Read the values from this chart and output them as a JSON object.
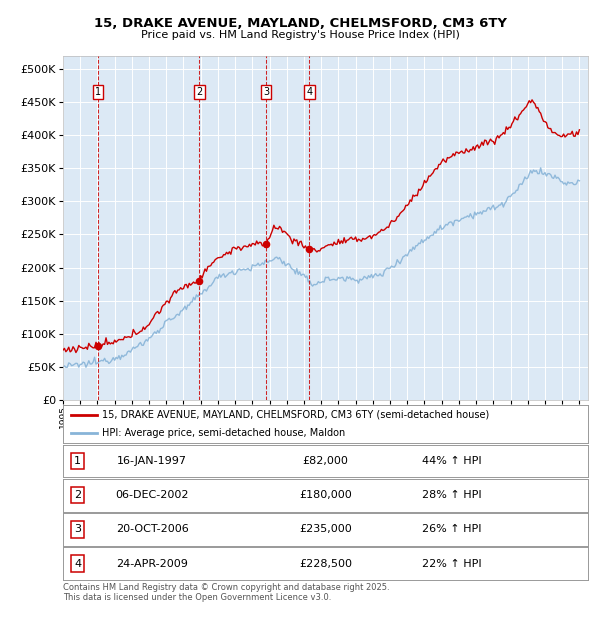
{
  "title": "15, DRAKE AVENUE, MAYLAND, CHELMSFORD, CM3 6TY",
  "subtitle": "Price paid vs. HM Land Registry's House Price Index (HPI)",
  "ylabel_ticks": [
    "£0",
    "£50K",
    "£100K",
    "£150K",
    "£200K",
    "£250K",
    "£300K",
    "£350K",
    "£400K",
    "£450K",
    "£500K"
  ],
  "ytick_values": [
    0,
    50000,
    100000,
    150000,
    200000,
    250000,
    300000,
    350000,
    400000,
    450000,
    500000
  ],
  "ylim": [
    0,
    520000
  ],
  "xlim_start": 1995.0,
  "xlim_end": 2025.5,
  "background_color": "#dce9f5",
  "grid_color": "#ffffff",
  "sale_color": "#cc0000",
  "hpi_color": "#88b4d8",
  "vline_color": "#cc0000",
  "transactions": [
    {
      "num": 1,
      "date_x": 1997.04,
      "price": 82000,
      "label": "1",
      "date_str": "16-JAN-1997",
      "pct": "44%"
    },
    {
      "num": 2,
      "date_x": 2002.92,
      "price": 180000,
      "label": "2",
      "date_str": "06-DEC-2002",
      "pct": "28%"
    },
    {
      "num": 3,
      "date_x": 2006.8,
      "price": 235000,
      "label": "3",
      "date_str": "20-OCT-2006",
      "pct": "26%"
    },
    {
      "num": 4,
      "date_x": 2009.31,
      "price": 228500,
      "label": "4",
      "date_str": "24-APR-2009",
      "pct": "22%"
    }
  ],
  "legend_sale_label": "15, DRAKE AVENUE, MAYLAND, CHELMSFORD, CM3 6TY (semi-detached house)",
  "legend_hpi_label": "HPI: Average price, semi-detached house, Maldon",
  "footnote": "Contains HM Land Registry data © Crown copyright and database right 2025.\nThis data is licensed under the Open Government Licence v3.0.",
  "table_rows": [
    [
      "1",
      "16-JAN-1997",
      "£82,000",
      "44% ↑ HPI"
    ],
    [
      "2",
      "06-DEC-2002",
      "£180,000",
      "28% ↑ HPI"
    ],
    [
      "3",
      "20-OCT-2006",
      "£235,000",
      "26% ↑ HPI"
    ],
    [
      "4",
      "24-APR-2009",
      "£228,500",
      "22% ↑ HPI"
    ]
  ]
}
